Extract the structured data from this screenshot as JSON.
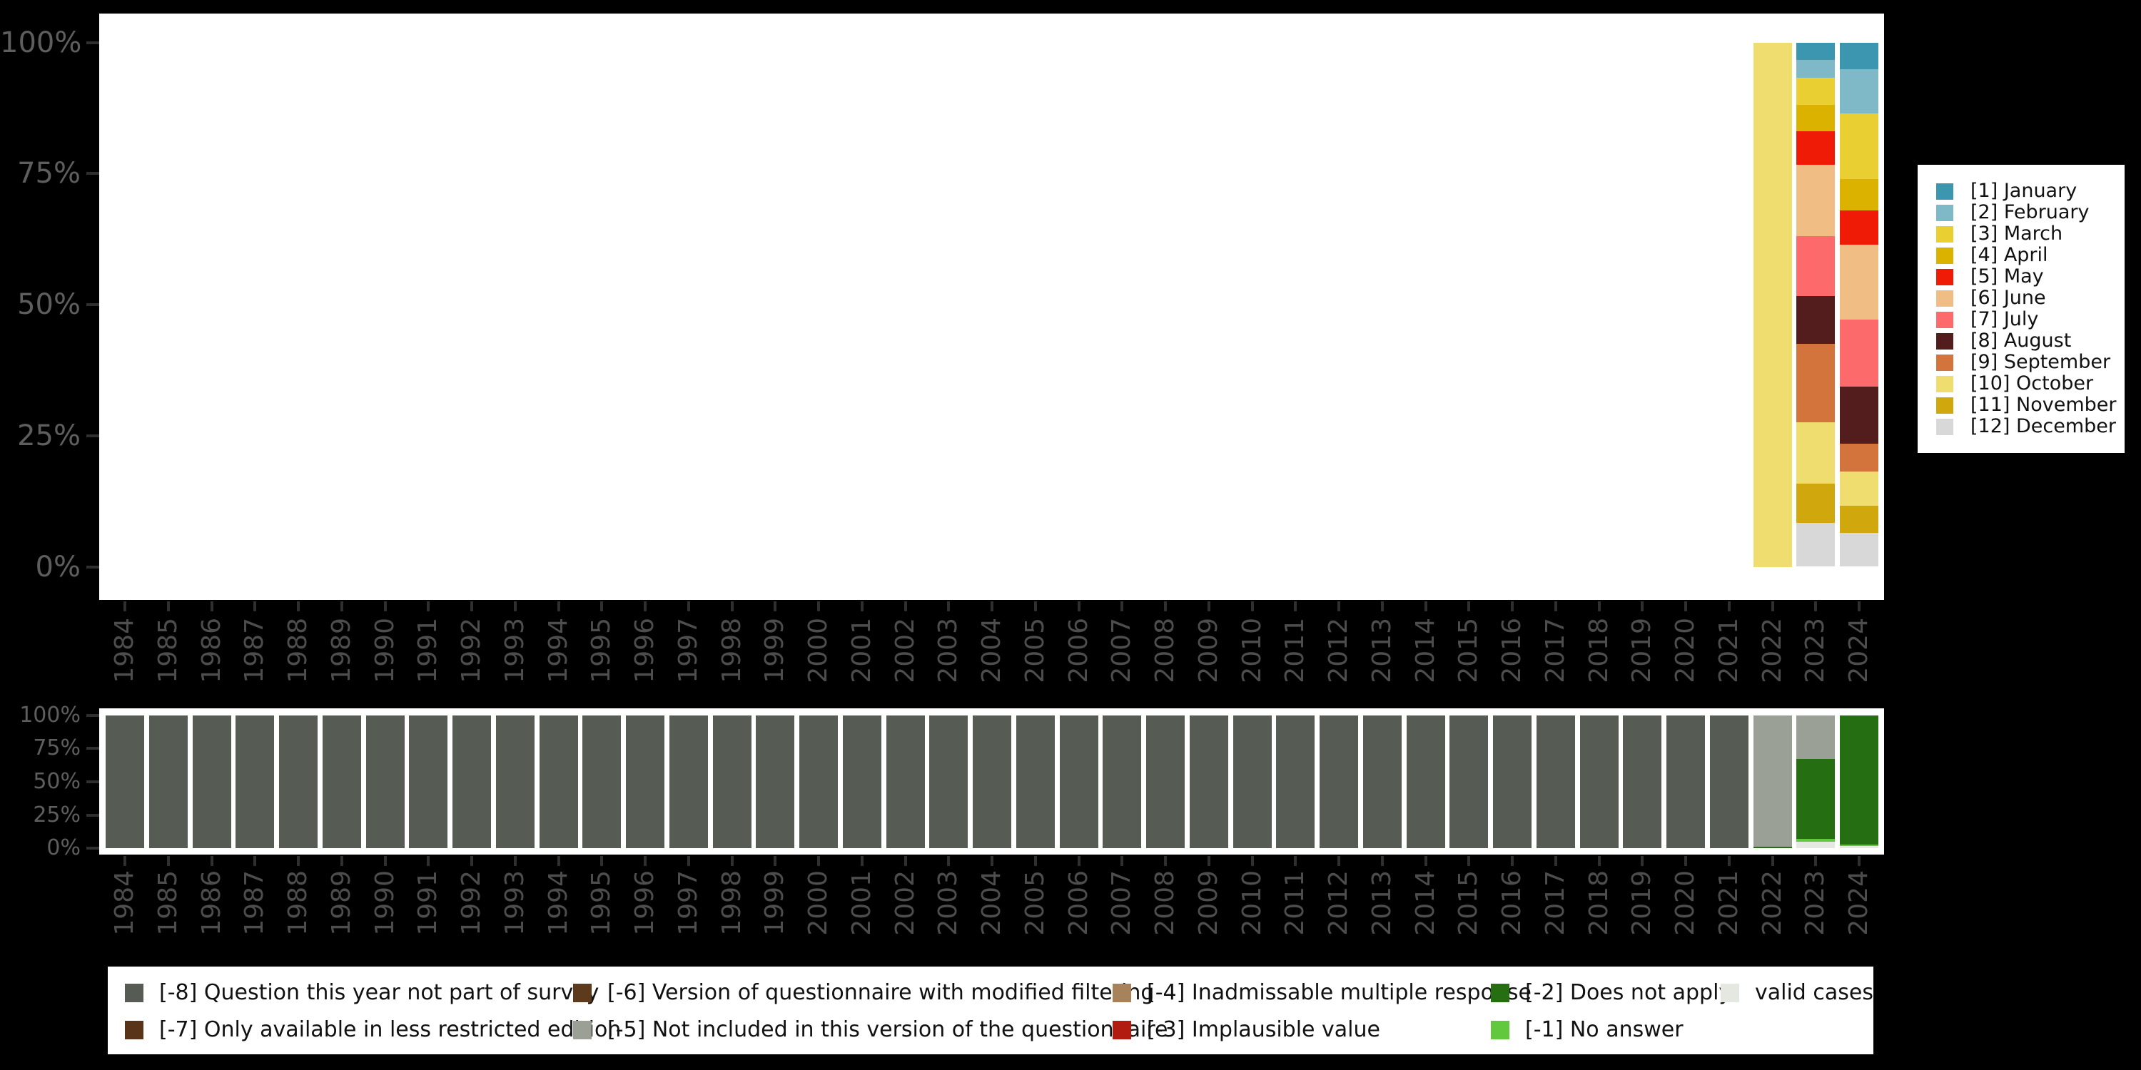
{
  "chart_data": [
    {
      "type": "bar",
      "stacked": true,
      "units": "percent",
      "title": "",
      "xlabel": "",
      "ylabel": "",
      "x": [
        1984,
        1985,
        1986,
        1987,
        1988,
        1989,
        1990,
        1991,
        1992,
        1993,
        1994,
        1995,
        1996,
        1997,
        1998,
        1999,
        2000,
        2001,
        2002,
        2003,
        2004,
        2005,
        2006,
        2007,
        2008,
        2009,
        2010,
        2011,
        2012,
        2013,
        2014,
        2015,
        2016,
        2017,
        2018,
        2019,
        2020,
        2021,
        2022,
        2023,
        2024
      ],
      "y_ticks": [
        "100%",
        "75%",
        "50%",
        "25%",
        "0%"
      ],
      "ylim": [
        0,
        100
      ],
      "grid": false,
      "legend_position": "right",
      "series": [
        {
          "name": "[1] January",
          "color": "#3c96af",
          "values_by_year": {
            "2023": 3.4,
            "2024": 5.1
          }
        },
        {
          "name": "[2] February",
          "color": "#7fb9c8",
          "values_by_year": {
            "2023": 3.4,
            "2024": 8.5
          }
        },
        {
          "name": "[3] March",
          "color": "#e9cf32",
          "values_by_year": {
            "2023": 5.1,
            "2024": 12.5
          }
        },
        {
          "name": "[4] April",
          "color": "#dcb200",
          "values_by_year": {
            "2023": 5.1,
            "2024": 5.9
          }
        },
        {
          "name": "[5] May",
          "color": "#f01b07",
          "values_by_year": {
            "2023": 6.4,
            "2024": 6.6
          }
        },
        {
          "name": "[6] June",
          "color": "#f0bd85",
          "values_by_year": {
            "2023": 13.5,
            "2024": 14.2
          }
        },
        {
          "name": "[7] July",
          "color": "#fd6a6c",
          "values_by_year": {
            "2023": 11.5,
            "2024": 12.9
          }
        },
        {
          "name": "[8] August",
          "color": "#541d1d",
          "values_by_year": {
            "2023": 9.1,
            "2024": 10.8
          }
        },
        {
          "name": "[9] September",
          "color": "#d3743c",
          "values_by_year": {
            "2023": 14.9,
            "2024": 5.3
          }
        },
        {
          "name": "[10] October",
          "color": "#f0dd70",
          "values_by_year": {
            "2022": 100,
            "2023": 11.8,
            "2024": 6.6
          }
        },
        {
          "name": "[11] November",
          "color": "#d0a80e",
          "values_by_year": {
            "2023": 7.4,
            "2024": 5.1
          }
        },
        {
          "name": "[12] December",
          "color": "#d8d8d8",
          "values_by_year": {
            "2023": 8.4,
            "2024": 6.5
          }
        }
      ]
    },
    {
      "type": "bar",
      "stacked": true,
      "units": "percent",
      "title": "",
      "xlabel": "",
      "ylabel": "",
      "x": [
        1984,
        1985,
        1986,
        1987,
        1988,
        1989,
        1990,
        1991,
        1992,
        1993,
        1994,
        1995,
        1996,
        1997,
        1998,
        1999,
        2000,
        2001,
        2002,
        2003,
        2004,
        2005,
        2006,
        2007,
        2008,
        2009,
        2010,
        2011,
        2012,
        2013,
        2014,
        2015,
        2016,
        2017,
        2018,
        2019,
        2020,
        2021,
        2022,
        2023,
        2024
      ],
      "y_ticks": [
        "100%",
        "75%",
        "50%",
        "25%",
        "0%"
      ],
      "ylim": [
        0,
        100
      ],
      "grid": false,
      "legend_position": "bottom",
      "series": [
        {
          "name": "[-8] Question this year not part of survey",
          "color": "#565c53",
          "values_by_year": {
            "1984": 100,
            "1985": 100,
            "1986": 100,
            "1987": 100,
            "1988": 100,
            "1989": 100,
            "1990": 100,
            "1991": 100,
            "1992": 100,
            "1993": 100,
            "1994": 100,
            "1995": 100,
            "1996": 100,
            "1997": 100,
            "1998": 100,
            "1999": 100,
            "2000": 100,
            "2001": 100,
            "2002": 100,
            "2003": 100,
            "2004": 100,
            "2005": 100,
            "2006": 100,
            "2007": 100,
            "2008": 100,
            "2009": 100,
            "2010": 100,
            "2011": 100,
            "2012": 100,
            "2013": 100,
            "2014": 100,
            "2015": 100,
            "2016": 100,
            "2017": 100,
            "2018": 100,
            "2019": 100,
            "2020": 100,
            "2021": 100
          }
        },
        {
          "name": "[-7] Only available in less restricted edition",
          "color": "#5a3418",
          "values_by_year": {}
        },
        {
          "name": "[-6] Version of questionnaire with modified filtering",
          "color": "#5d3a1b",
          "values_by_year": {}
        },
        {
          "name": "[-5] Not included in this version of the questionnaire",
          "color": "#9aa096",
          "values_by_year": {
            "2022": 99,
            "2023": 33
          }
        },
        {
          "name": "[-4] Inadmissable multiple response",
          "color": "#a8825a",
          "values_by_year": {}
        },
        {
          "name": "[-3] Implausible value",
          "color": "#b21b10",
          "values_by_year": {}
        },
        {
          "name": "[-2] Does not apply",
          "color": "#256e11",
          "values_by_year": {
            "2022": 1,
            "2023": 60,
            "2024": 97.5
          }
        },
        {
          "name": "[-1] No answer",
          "color": "#62c83e",
          "values_by_year": {
            "2023": 2,
            "2024": 1
          }
        },
        {
          "name": "valid cases",
          "color": "#e4e8e1",
          "values_by_year": {
            "2023": 5,
            "2024": 1.5
          }
        }
      ]
    }
  ]
}
